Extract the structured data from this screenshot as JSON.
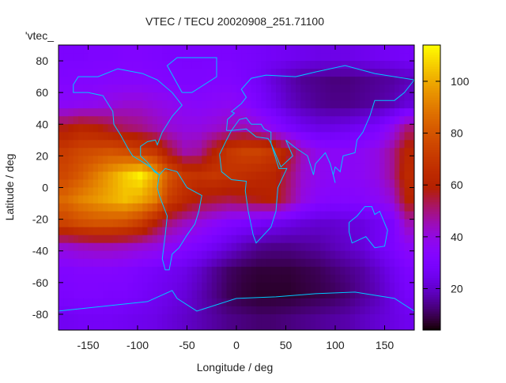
{
  "chart_data": {
    "type": "heatmap",
    "title": "VTEC / TECU 20020908_251.71100",
    "xlabel": "Longitude / deg",
    "ylabel": "Latitude / deg",
    "key_label": "'vtec_",
    "xlim": [
      -180,
      180
    ],
    "ylim": [
      -90,
      90
    ],
    "xticks": [
      -150,
      -100,
      -50,
      0,
      50,
      100,
      150
    ],
    "yticks": [
      -80,
      -60,
      -40,
      -20,
      0,
      20,
      40,
      60,
      80
    ],
    "colorbar": {
      "range": [
        4,
        114
      ],
      "ticks": [
        20,
        40,
        60,
        80,
        100
      ],
      "palette": "black-blue-purple-red-orange-yellow"
    },
    "coastline_color": "#00c8ff",
    "grid_lon_centers": [
      -172.5,
      -157.5,
      -142.5,
      -127.5,
      -112.5,
      -97.5,
      -82.5,
      -67.5,
      -52.5,
      -37.5,
      -22.5,
      -7.5,
      7.5,
      22.5,
      37.5,
      52.5,
      67.5,
      82.5,
      97.5,
      112.5,
      127.5,
      142.5,
      157.5,
      172.5
    ],
    "grid_lat_centers": [
      82.5,
      67.5,
      52.5,
      37.5,
      22.5,
      7.5,
      -7.5,
      -22.5,
      -37.5,
      -52.5,
      -67.5,
      -82.5
    ],
    "values": [
      [
        30,
        30,
        31,
        31,
        32,
        32,
        31,
        30,
        30,
        30,
        30,
        30,
        29,
        28,
        27,
        26,
        25,
        24,
        24,
        24,
        25,
        26,
        27,
        28
      ],
      [
        32,
        33,
        33,
        34,
        34,
        34,
        33,
        32,
        31,
        31,
        32,
        32,
        30,
        27,
        22,
        18,
        15,
        14,
        13,
        13,
        14,
        15,
        16,
        18
      ],
      [
        36,
        37,
        38,
        40,
        42,
        42,
        40,
        38,
        36,
        35,
        36,
        37,
        35,
        30,
        25,
        20,
        17,
        15,
        14,
        14,
        15,
        16,
        18,
        22
      ],
      [
        58,
        62,
        60,
        56,
        52,
        50,
        46,
        42,
        40,
        40,
        42,
        45,
        46,
        42,
        36,
        30,
        26,
        24,
        24,
        25,
        27,
        30,
        38,
        50
      ],
      [
        72,
        76,
        78,
        80,
        78,
        74,
        70,
        56,
        46,
        48,
        60,
        70,
        74,
        74,
        70,
        58,
        44,
        38,
        36,
        36,
        37,
        40,
        48,
        62
      ],
      [
        76,
        82,
        90,
        98,
        106,
        112,
        100,
        80,
        70,
        68,
        70,
        68,
        66,
        64,
        62,
        52,
        42,
        38,
        36,
        36,
        37,
        40,
        48,
        64
      ],
      [
        86,
        92,
        96,
        100,
        104,
        100,
        92,
        72,
        64,
        58,
        56,
        54,
        56,
        58,
        60,
        50,
        40,
        35,
        33,
        33,
        34,
        36,
        42,
        60
      ],
      [
        74,
        78,
        80,
        80,
        78,
        72,
        60,
        50,
        44,
        40,
        36,
        32,
        30,
        28,
        26,
        24,
        22,
        21,
        21,
        22,
        23,
        26,
        30,
        45
      ],
      [
        42,
        44,
        45,
        45,
        44,
        42,
        40,
        36,
        33,
        30,
        26,
        22,
        18,
        15,
        14,
        14,
        15,
        16,
        18,
        20,
        22,
        26,
        30,
        36
      ],
      [
        32,
        33,
        33,
        33,
        32,
        30,
        28,
        26,
        24,
        20,
        15,
        11,
        9,
        8,
        8,
        8,
        9,
        10,
        12,
        14,
        16,
        20,
        25,
        30
      ],
      [
        30,
        31,
        31,
        30,
        30,
        28,
        26,
        24,
        22,
        18,
        14,
        10,
        8,
        7,
        7,
        7,
        8,
        9,
        10,
        12,
        15,
        18,
        23,
        28
      ],
      [
        26,
        27,
        27,
        27,
        26,
        25,
        24,
        22,
        20,
        18,
        16,
        14,
        13,
        12,
        12,
        13,
        14,
        15,
        16,
        17,
        19,
        21,
        23,
        25
      ]
    ]
  }
}
